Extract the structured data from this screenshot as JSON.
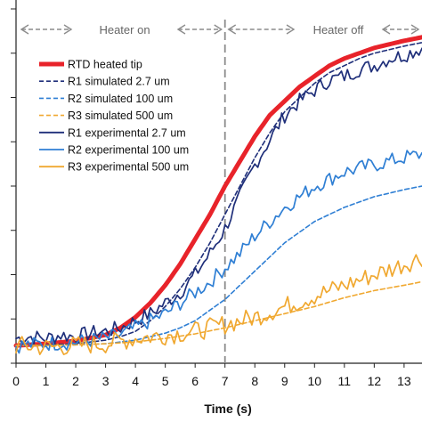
{
  "chart_data": {
    "type": "line",
    "title": "",
    "xlabel": "Time (s)",
    "ylabel": "",
    "xlim": [
      0,
      13.6
    ],
    "ylim": [
      0,
      1.0
    ],
    "x_ticks": [
      0,
      1,
      2,
      3,
      4,
      5,
      6,
      7,
      8,
      9,
      10,
      11,
      12,
      13
    ],
    "grid": false,
    "legend_position": "top-left",
    "annotations": {
      "heater_on": "Heater on",
      "heater_off": "Heater off",
      "switch_time": 7
    },
    "series": [
      {
        "name": "RTD heated tip",
        "color": "#e8232a",
        "style": "solid-thick",
        "x": [
          0,
          1,
          2,
          3,
          3.5,
          4,
          4.5,
          5,
          5.5,
          6,
          6.5,
          7,
          7.5,
          8,
          8.5,
          9,
          9.5,
          10,
          10.5,
          11,
          11.5,
          12,
          12.5,
          13,
          13.6
        ],
        "y": [
          0.05,
          0.055,
          0.063,
          0.08,
          0.1,
          0.13,
          0.17,
          0.22,
          0.28,
          0.35,
          0.42,
          0.5,
          0.57,
          0.64,
          0.7,
          0.74,
          0.78,
          0.81,
          0.84,
          0.86,
          0.875,
          0.89,
          0.9,
          0.91,
          0.92
        ]
      },
      {
        "name": "R1 simulated 2.7 um",
        "color": "#1f2f7a",
        "style": "dashed",
        "x": [
          0,
          1,
          2,
          3,
          3.5,
          4,
          4.5,
          5,
          5.5,
          6,
          6.5,
          7,
          7.5,
          8,
          8.5,
          9,
          9.5,
          10,
          10.5,
          11,
          11.5,
          12,
          12.5,
          13,
          13.6
        ],
        "y": [
          0.05,
          0.052,
          0.055,
          0.065,
          0.075,
          0.09,
          0.12,
          0.16,
          0.21,
          0.27,
          0.34,
          0.42,
          0.5,
          0.58,
          0.65,
          0.71,
          0.75,
          0.79,
          0.82,
          0.84,
          0.86,
          0.875,
          0.885,
          0.895,
          0.905
        ]
      },
      {
        "name": "R2 simulated 100 um",
        "color": "#2f7fd4",
        "style": "dashed",
        "x": [
          0,
          1,
          2,
          3,
          4,
          5,
          5.5,
          6,
          6.5,
          7,
          7.5,
          8,
          8.5,
          9,
          9.5,
          10,
          11,
          12,
          13,
          13.6
        ],
        "y": [
          0.05,
          0.05,
          0.052,
          0.055,
          0.065,
          0.085,
          0.1,
          0.12,
          0.15,
          0.18,
          0.22,
          0.26,
          0.3,
          0.34,
          0.37,
          0.4,
          0.44,
          0.47,
          0.49,
          0.5
        ]
      },
      {
        "name": "R3 simulated 500 um",
        "color": "#f0a830",
        "style": "dashed",
        "x": [
          0,
          1,
          2,
          3,
          4,
          5,
          6,
          7,
          8,
          9,
          10,
          11,
          12,
          13,
          13.6
        ],
        "y": [
          0.05,
          0.05,
          0.052,
          0.055,
          0.06,
          0.07,
          0.083,
          0.1,
          0.12,
          0.14,
          0.16,
          0.185,
          0.205,
          0.22,
          0.23
        ]
      },
      {
        "name": "R1 experimental 2.7 um",
        "color": "#1f2f7a",
        "style": "solid-noisy",
        "x": [
          0,
          0.5,
          1,
          1.5,
          2,
          2.5,
          3,
          3.5,
          4,
          4.5,
          5,
          5.5,
          6,
          6.5,
          7,
          7.5,
          8,
          8.5,
          9,
          9.5,
          10,
          10.5,
          11,
          11.5,
          12,
          12.5,
          13,
          13.6
        ],
        "y": [
          0.07,
          0.075,
          0.07,
          0.08,
          0.075,
          0.085,
          0.09,
          0.1,
          0.12,
          0.14,
          0.17,
          0.2,
          0.25,
          0.31,
          0.38,
          0.47,
          0.56,
          0.63,
          0.7,
          0.74,
          0.77,
          0.8,
          0.81,
          0.83,
          0.84,
          0.86,
          0.87,
          0.89
        ]
      },
      {
        "name": "R2 experimental 100 um",
        "color": "#2f7fd4",
        "style": "solid-noisy",
        "x": [
          0,
          1,
          2,
          3,
          3.5,
          4,
          4.5,
          5,
          5.5,
          6,
          6.5,
          7,
          7.5,
          8,
          8.5,
          9,
          9.5,
          10,
          10.5,
          11,
          11.5,
          12,
          12.5,
          13,
          13.6
        ],
        "y": [
          0.05,
          0.055,
          0.06,
          0.07,
          0.08,
          0.1,
          0.12,
          0.14,
          0.17,
          0.2,
          0.23,
          0.27,
          0.31,
          0.36,
          0.4,
          0.44,
          0.47,
          0.5,
          0.52,
          0.54,
          0.55,
          0.56,
          0.57,
          0.58,
          0.59
        ]
      },
      {
        "name": "R3 experimental 500 um",
        "color": "#f0a830",
        "style": "solid-noisy",
        "x": [
          0,
          1,
          2,
          3,
          4,
          5,
          6,
          7,
          8,
          9,
          10,
          11,
          12,
          13,
          13.6
        ],
        "y": [
          0.05,
          0.045,
          0.05,
          0.055,
          0.07,
          0.08,
          0.09,
          0.11,
          0.13,
          0.16,
          0.19,
          0.22,
          0.25,
          0.28,
          0.3
        ]
      }
    ]
  }
}
